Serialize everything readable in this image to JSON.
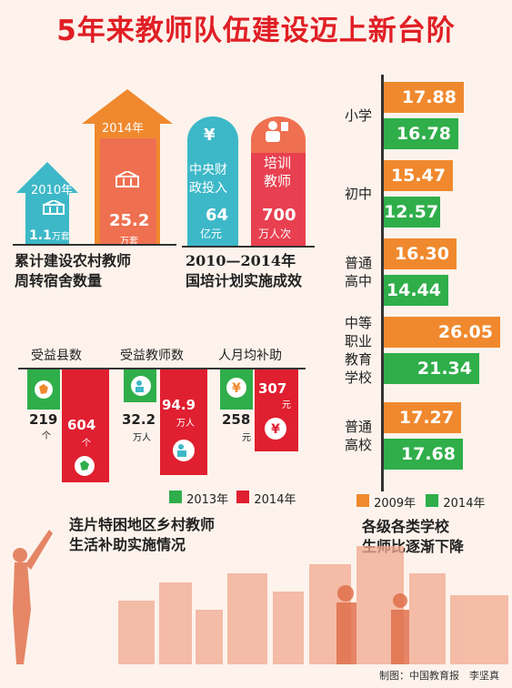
{
  "title": "5年来教师队伍建设迈上新台阶",
  "credit": "制图：中国教育报　李坚真",
  "dormitory": {
    "label_2010": "2010年",
    "label_2014": "2014年",
    "val_2010": "1.1",
    "val_2014": "25.2",
    "unit": "万套",
    "caption_line1": "累计建设农村教师",
    "caption_line2": "周转宿舍数量"
  },
  "guopei": {
    "invest_icon": "¥",
    "invest_label1": "中央财",
    "invest_label2": "政投入",
    "invest_value": "64",
    "invest_unit": "亿元",
    "train_label1": "培训",
    "train_label2": "教师",
    "train_value": "700",
    "train_unit": "万人次",
    "caption_line1": "2010—2014年",
    "caption_line2": "国培计划实施成效"
  },
  "subsidy": {
    "headers": [
      "受益县数",
      "受益教师数",
      "人月均补助"
    ],
    "v2013": [
      "219",
      "32.2",
      "258"
    ],
    "u2013": [
      "个",
      "万人",
      "元"
    ],
    "v2014": [
      "604",
      "94.9",
      "307"
    ],
    "u2014": [
      "个",
      "万人",
      "元"
    ],
    "yen": "¥",
    "legend_2013": "2013年",
    "legend_2014": "2014年",
    "caption_line1": "连片特困地区乡村教师",
    "caption_line2": "生活补助实施情况"
  },
  "ratio": {
    "categories": [
      [
        "小学"
      ],
      [
        "初中"
      ],
      [
        "普通",
        "高中"
      ],
      [
        "中等",
        "职业",
        "教育",
        "学校"
      ],
      [
        "普通",
        "高校"
      ]
    ],
    "v2009": [
      "17.88",
      "15.47",
      "16.30",
      "26.05",
      "17.27"
    ],
    "v2014": [
      "16.78",
      "12.57",
      "14.44",
      "21.34",
      "17.68"
    ],
    "legend_2009": "2009年",
    "legend_2014": "2014年",
    "caption_line1": "各级各类学校",
    "caption_line2": "生师比逐渐下降"
  },
  "colors": {
    "orange": "#f0892e",
    "green": "#2fae4a",
    "red": "#e01f30",
    "teal": "#3db8c8",
    "salmon": "#ee7050",
    "title": "#e01f25"
  },
  "chart_data": [
    {
      "type": "bar",
      "categories": [
        "2010年",
        "2014年"
      ],
      "series": [
        {
          "values": [
            1.1,
            25.2
          ]
        }
      ],
      "title": "累计建设农村教师周转宿舍数量",
      "ylabel": "万套"
    },
    {
      "type": "bar",
      "categories": [
        "中央财政投入",
        "培训教师"
      ],
      "series": [
        {
          "values": [
            64,
            700
          ]
        }
      ],
      "title": "2010—2014年国培计划实施成效"
    },
    {
      "type": "bar",
      "categories": [
        "受益县数",
        "受益教师数",
        "人月均补助"
      ],
      "series": [
        {
          "name": "2013年",
          "values": [
            219,
            32.2,
            258
          ]
        },
        {
          "name": "2014年",
          "values": [
            604,
            94.9,
            307
          ]
        }
      ],
      "title": "连片特困地区乡村教师生活补助实施情况",
      "legend": "bottom"
    },
    {
      "type": "bar",
      "categories": [
        "小学",
        "初中",
        "普通高中",
        "中等职业教育学校",
        "普通高校"
      ],
      "series": [
        {
          "name": "2009年",
          "values": [
            17.88,
            15.47,
            16.3,
            26.05,
            17.27
          ]
        },
        {
          "name": "2014年",
          "values": [
            16.78,
            12.57,
            14.44,
            21.34,
            17.68
          ]
        }
      ],
      "title": "各级各类学校生师比逐渐下降",
      "orientation": "horizontal",
      "legend": "bottom"
    }
  ]
}
